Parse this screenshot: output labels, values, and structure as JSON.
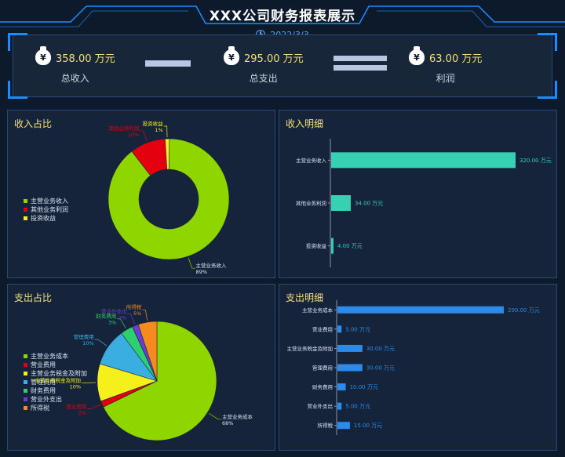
{
  "header": {
    "title": "XXX公司财务报表展示",
    "date": "2022/3/3"
  },
  "summary": {
    "income": {
      "value": "358.00 万元",
      "label": "总收入",
      "icon": "money-bag-icon"
    },
    "expense": {
      "value": "295.00 万元",
      "label": "总支出",
      "icon": "money-bag-icon"
    },
    "profit": {
      "value": "63.00 万元",
      "label": "利润",
      "icon": "money-bag-icon"
    },
    "bag_symbol": "¥"
  },
  "panels": {
    "income_share": {
      "title": "收入占比"
    },
    "income_detail": {
      "title": "收入明细"
    },
    "expense_share": {
      "title": "支出占比"
    },
    "expense_detail": {
      "title": "支出明细"
    }
  },
  "chart_data": [
    {
      "id": "income_share",
      "type": "pie",
      "donut": true,
      "legend_position": "left",
      "slices": [
        {
          "name": "主营业务收入",
          "value": 320,
          "percent": "89%",
          "color": "#8fd600"
        },
        {
          "name": "其他业务利润",
          "value": 34,
          "percent": "10%",
          "color": "#e5000f"
        },
        {
          "name": "投资收益",
          "value": 4,
          "percent": "1%",
          "color": "#f5ef1c"
        }
      ]
    },
    {
      "id": "income_detail",
      "type": "bar",
      "orientation": "horizontal",
      "unit": "万元",
      "color": "#36d1b3",
      "categories": [
        "主营业务收入",
        "其他业务利润",
        "投资收益"
      ],
      "values": [
        320,
        34,
        4
      ],
      "data_labels": [
        "320.00 万元",
        "34.00 万元",
        "4.00 万元"
      ]
    },
    {
      "id": "expense_share",
      "type": "pie",
      "donut": false,
      "legend_position": "left",
      "slices": [
        {
          "name": "主营业务成本",
          "value": 200,
          "percent": "68%",
          "color": "#8fd600"
        },
        {
          "name": "营业费用",
          "value": 5,
          "percent": "2%",
          "color": "#e5000f"
        },
        {
          "name": "主营业务税金及附加",
          "value": 30,
          "percent": "10%",
          "color": "#f5ef1c"
        },
        {
          "name": "管理费用",
          "value": 30,
          "percent": "10%",
          "color": "#3aaee0"
        },
        {
          "name": "财务费用",
          "value": 10,
          "percent": "3%",
          "color": "#2ed06e"
        },
        {
          "name": "营业外支出",
          "value": 5,
          "percent": "2%",
          "color": "#6a3fd0"
        },
        {
          "name": "所得税",
          "value": 15,
          "percent": "5%",
          "color": "#f58a1f"
        }
      ]
    },
    {
      "id": "expense_detail",
      "type": "bar",
      "orientation": "horizontal",
      "unit": "万元",
      "color": "#2d8ae8",
      "categories": [
        "主营业务成本",
        "营业费用",
        "主营业务税金及附加",
        "管理费用",
        "财务费用",
        "营业外支出",
        "所得税"
      ],
      "values": [
        200,
        5,
        30,
        30,
        10,
        5,
        15
      ],
      "data_labels": [
        "200.00 万元",
        "5.00 万元",
        "30.00 万元",
        "30.00 万元",
        "10.00 万元",
        "5.00 万元",
        "15.00 万元"
      ]
    }
  ]
}
